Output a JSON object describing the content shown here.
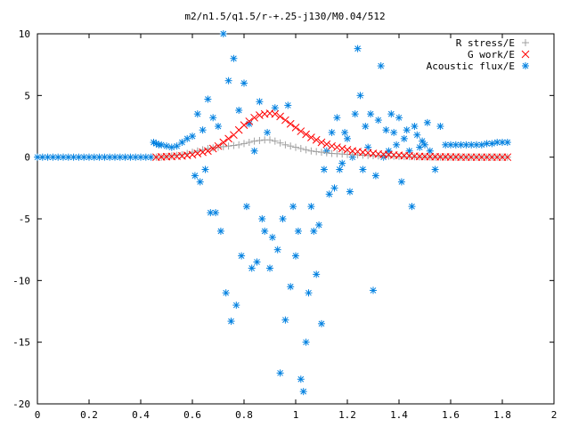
{
  "chart_data": {
    "type": "scatter",
    "title": "m2/n1.5/q1.5/r-+.25-j130/M0.04/512",
    "xlabel": "",
    "ylabel": "",
    "xlim": [
      0,
      2
    ],
    "ylim": [
      -20,
      10
    ],
    "x_ticks": [
      "0",
      "0.2",
      "0.4",
      "0.6",
      "0.8",
      "1",
      "1.2",
      "1.4",
      "1.6",
      "1.8",
      "2"
    ],
    "y_ticks": [
      "10",
      "5",
      "0",
      "-5",
      "-10",
      "-15",
      "-20"
    ],
    "legend_position": "top-right",
    "grid": false,
    "series": [
      {
        "name": "R stress/E",
        "marker": "+",
        "color": "#a0a0a0",
        "x": [
          0.46,
          0.48,
          0.5,
          0.52,
          0.54,
          0.56,
          0.58,
          0.6,
          0.62,
          0.64,
          0.66,
          0.68,
          0.7,
          0.72,
          0.74,
          0.76,
          0.78,
          0.8,
          0.82,
          0.84,
          0.86,
          0.88,
          0.9,
          0.92,
          0.94,
          0.96,
          0.98,
          1.0,
          1.02,
          1.04,
          1.06,
          1.08,
          1.1,
          1.12,
          1.14,
          1.16,
          1.18,
          1.2,
          1.22,
          1.24,
          1.26,
          1.28,
          1.3,
          1.32,
          1.34,
          1.36,
          1.38,
          1.4,
          1.42,
          1.44,
          1.46,
          1.48,
          1.5,
          1.52,
          1.54,
          1.56,
          1.58,
          1.6,
          1.62,
          1.64,
          1.66,
          1.68,
          1.7,
          1.72,
          1.74,
          1.76,
          1.78,
          1.8,
          1.82
        ],
        "y": [
          0.0,
          0.0,
          0.05,
          0.1,
          0.15,
          0.2,
          0.3,
          0.4,
          0.5,
          0.6,
          0.7,
          0.75,
          0.8,
          0.85,
          0.9,
          0.95,
          1.0,
          1.1,
          1.2,
          1.3,
          1.35,
          1.4,
          1.4,
          1.3,
          1.15,
          1.0,
          0.9,
          0.8,
          0.7,
          0.6,
          0.5,
          0.45,
          0.4,
          0.35,
          0.3,
          0.28,
          0.25,
          0.22,
          0.2,
          0.18,
          0.16,
          0.14,
          0.12,
          0.1,
          0.09,
          0.08,
          0.07,
          0.06,
          0.05,
          0.04,
          0.03,
          0.02,
          0.02,
          0.01,
          0.0,
          0.0,
          0.0,
          0.0,
          0.0,
          0.0,
          0.0,
          0.0,
          0.0,
          0.0,
          0.0,
          0.0,
          0.0,
          0.0,
          0.0
        ]
      },
      {
        "name": "G work/E",
        "marker": "x",
        "color": "#ff0000",
        "x": [
          0.46,
          0.48,
          0.5,
          0.52,
          0.54,
          0.56,
          0.58,
          0.6,
          0.62,
          0.64,
          0.66,
          0.68,
          0.7,
          0.72,
          0.74,
          0.76,
          0.78,
          0.8,
          0.82,
          0.84,
          0.86,
          0.88,
          0.9,
          0.92,
          0.94,
          0.96,
          0.98,
          1.0,
          1.02,
          1.04,
          1.06,
          1.08,
          1.1,
          1.12,
          1.14,
          1.16,
          1.18,
          1.2,
          1.22,
          1.24,
          1.26,
          1.28,
          1.3,
          1.32,
          1.34,
          1.36,
          1.38,
          1.4,
          1.42,
          1.44,
          1.46,
          1.48,
          1.5,
          1.52,
          1.54,
          1.56,
          1.58,
          1.6,
          1.62,
          1.64,
          1.66,
          1.68,
          1.7,
          1.72,
          1.74,
          1.76,
          1.78,
          1.8,
          1.82
        ],
        "y": [
          0.0,
          0.02,
          0.04,
          0.06,
          0.08,
          0.1,
          0.15,
          0.2,
          0.3,
          0.4,
          0.5,
          0.7,
          0.9,
          1.2,
          1.5,
          1.8,
          2.2,
          2.6,
          2.9,
          3.2,
          3.4,
          3.5,
          3.55,
          3.5,
          3.3,
          3.0,
          2.7,
          2.4,
          2.1,
          1.85,
          1.6,
          1.4,
          1.2,
          1.05,
          0.9,
          0.8,
          0.7,
          0.6,
          0.5,
          0.45,
          0.4,
          0.35,
          0.3,
          0.25,
          0.22,
          0.2,
          0.17,
          0.15,
          0.12,
          0.1,
          0.08,
          0.06,
          0.05,
          0.04,
          0.03,
          0.02,
          0.02,
          0.01,
          0.01,
          0.0,
          0.0,
          0.0,
          0.0,
          0.0,
          0.0,
          0.0,
          0.0,
          0.0,
          0.0
        ]
      },
      {
        "name": "Acoustic flux/E",
        "marker": "*",
        "color": "#0080e0",
        "x": [
          0.0,
          0.02,
          0.04,
          0.06,
          0.08,
          0.1,
          0.12,
          0.14,
          0.16,
          0.18,
          0.2,
          0.22,
          0.24,
          0.26,
          0.28,
          0.3,
          0.32,
          0.34,
          0.36,
          0.38,
          0.4,
          0.42,
          0.44,
          0.45,
          0.46,
          0.47,
          0.48,
          0.5,
          0.52,
          0.54,
          0.56,
          0.58,
          0.6,
          0.61,
          0.62,
          0.63,
          0.64,
          0.65,
          0.66,
          0.67,
          0.68,
          0.69,
          0.7,
          0.71,
          0.72,
          0.73,
          0.74,
          0.75,
          0.76,
          0.77,
          0.78,
          0.79,
          0.8,
          0.81,
          0.82,
          0.83,
          0.84,
          0.85,
          0.86,
          0.87,
          0.88,
          0.89,
          0.9,
          0.91,
          0.92,
          0.93,
          0.94,
          0.95,
          0.96,
          0.97,
          0.98,
          0.99,
          1.0,
          1.01,
          1.02,
          1.03,
          1.04,
          1.05,
          1.06,
          1.07,
          1.08,
          1.09,
          1.1,
          1.11,
          1.12,
          1.13,
          1.14,
          1.15,
          1.16,
          1.17,
          1.18,
          1.19,
          1.2,
          1.21,
          1.22,
          1.23,
          1.24,
          1.25,
          1.26,
          1.27,
          1.28,
          1.29,
          1.3,
          1.31,
          1.32,
          1.33,
          1.34,
          1.35,
          1.36,
          1.37,
          1.38,
          1.39,
          1.4,
          1.41,
          1.42,
          1.43,
          1.44,
          1.45,
          1.46,
          1.47,
          1.48,
          1.49,
          1.5,
          1.51,
          1.52,
          1.54,
          1.56,
          1.58,
          1.6,
          1.62,
          1.64,
          1.66,
          1.68,
          1.7,
          1.72,
          1.74,
          1.76,
          1.78,
          1.8,
          1.82
        ],
        "y": [
          0.0,
          0.0,
          0.0,
          0.0,
          0.0,
          0.0,
          0.0,
          0.0,
          0.0,
          0.0,
          0.0,
          0.0,
          0.0,
          0.0,
          0.0,
          0.0,
          0.0,
          0.0,
          0.0,
          0.0,
          0.0,
          0.0,
          0.0,
          1.2,
          1.1,
          1.0,
          1.0,
          0.9,
          0.8,
          0.9,
          1.2,
          1.5,
          1.7,
          -1.5,
          3.5,
          -2.0,
          2.2,
          -1.0,
          4.7,
          -4.5,
          3.2,
          -4.5,
          2.5,
          -6.0,
          10.0,
          -11.0,
          6.2,
          -13.3,
          8.0,
          -12.0,
          3.8,
          -8.0,
          6.0,
          -4.0,
          2.7,
          -9.0,
          0.5,
          -8.5,
          4.5,
          -5.0,
          -6.0,
          2.0,
          -9.0,
          -6.5,
          4.0,
          -7.5,
          -17.5,
          -5.0,
          -13.2,
          4.2,
          -10.5,
          -4.0,
          -8.0,
          -6.0,
          -18.0,
          -19.0,
          -15.0,
          -11.0,
          -4.0,
          -6.0,
          -9.5,
          -5.5,
          -13.5,
          -1.0,
          0.5,
          -3.0,
          2.0,
          -2.5,
          3.2,
          -1.0,
          -0.5,
          2.0,
          1.5,
          -2.8,
          0.0,
          3.5,
          8.8,
          5.0,
          -1.0,
          2.5,
          0.8,
          3.5,
          -10.8,
          -1.5,
          3.0,
          7.4,
          0.0,
          2.2,
          0.5,
          3.5,
          2.0,
          1.0,
          3.2,
          -2.0,
          1.5,
          2.2,
          0.5,
          -4.0,
          2.5,
          1.8,
          0.8,
          1.3,
          1.0,
          2.8,
          0.5,
          -1.0,
          2.5,
          1.0,
          1.0,
          1.0,
          1.0,
          1.0,
          1.0,
          1.0,
          1.0,
          1.1,
          1.1,
          1.2,
          1.2,
          1.2
        ]
      }
    ]
  }
}
